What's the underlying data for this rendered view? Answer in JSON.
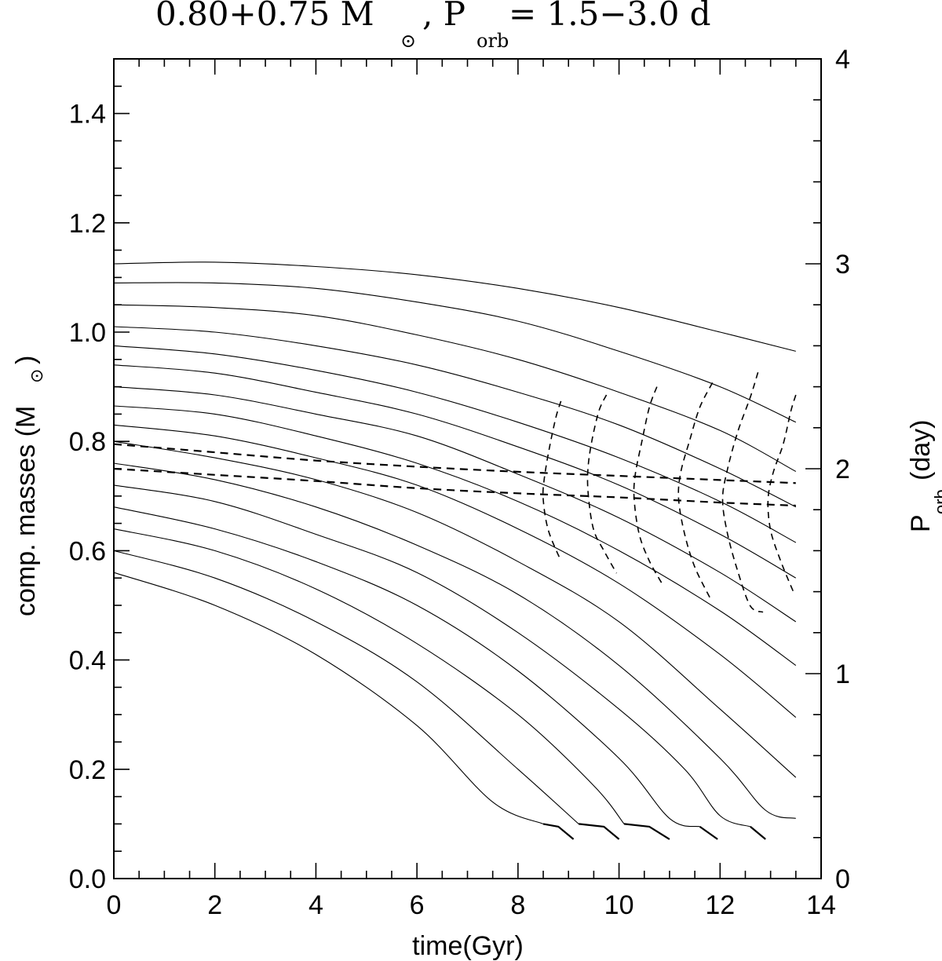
{
  "chart_data": {
    "type": "line",
    "title": "0.80+0.75 M",
    "title_sun_symbol": "⊙",
    "title_rest": ", P",
    "title_orb_sub": "orb",
    "title_period": " = 1.5−3.0 d",
    "xlabel": "time(Gyr)",
    "ylabel_left": "comp. masses (M",
    "ylabel_left_sun": "⊙",
    "ylabel_left_close": ")",
    "ylabel_right": "P",
    "ylabel_right_sub": "orb",
    "ylabel_right_unit": "(day)",
    "xlim": [
      0,
      14
    ],
    "ylim_left": [
      0,
      1.5
    ],
    "ylim_right": [
      0,
      4
    ],
    "x_ticks": [
      0,
      2,
      4,
      6,
      8,
      10,
      12,
      14
    ],
    "x_tick_labels": [
      "0",
      "2",
      "4",
      "6",
      "8",
      "10",
      "12",
      "14"
    ],
    "y_ticks_left": [
      0.0,
      0.2,
      0.4,
      0.6,
      0.8,
      1.0,
      1.2,
      1.4
    ],
    "y_tick_labels_left": [
      "0.0",
      "0.2",
      "0.4",
      "0.6",
      "0.8",
      "1.0",
      "1.2",
      "1.4"
    ],
    "y_ticks_right": [
      0,
      1,
      2,
      3,
      4
    ],
    "y_tick_labels_right": [
      "0",
      "1",
      "2",
      "3",
      "4"
    ],
    "donor_mass_tracks": [
      [
        [
          0,
          0.56
        ],
        [
          2,
          0.5
        ],
        [
          4,
          0.41
        ],
        [
          6,
          0.28
        ],
        [
          7.5,
          0.14
        ],
        [
          8.5,
          0.1
        ],
        [
          8.8,
          0.095
        ],
        [
          9.1,
          0.072
        ]
      ],
      [
        [
          0,
          0.6
        ],
        [
          2,
          0.55
        ],
        [
          4,
          0.47
        ],
        [
          6,
          0.36
        ],
        [
          8,
          0.2
        ],
        [
          9.2,
          0.1
        ],
        [
          9.7,
          0.095
        ],
        [
          10,
          0.072
        ]
      ],
      [
        [
          0,
          0.64
        ],
        [
          2,
          0.6
        ],
        [
          4,
          0.53
        ],
        [
          6,
          0.43
        ],
        [
          8,
          0.3
        ],
        [
          9.5,
          0.17
        ],
        [
          10.1,
          0.1
        ],
        [
          10.6,
          0.095
        ],
        [
          11,
          0.072
        ]
      ],
      [
        [
          0,
          0.68
        ],
        [
          2,
          0.64
        ],
        [
          4,
          0.58
        ],
        [
          6,
          0.5
        ],
        [
          8,
          0.38
        ],
        [
          10,
          0.22
        ],
        [
          11,
          0.11
        ],
        [
          11.6,
          0.095
        ],
        [
          11.95,
          0.072
        ]
      ],
      [
        [
          0,
          0.72
        ],
        [
          2,
          0.69
        ],
        [
          4,
          0.63
        ],
        [
          6,
          0.56
        ],
        [
          8,
          0.45
        ],
        [
          10,
          0.31
        ],
        [
          11.3,
          0.2
        ],
        [
          12,
          0.115
        ],
        [
          12.6,
          0.095
        ],
        [
          12.9,
          0.072
        ]
      ],
      [
        [
          0,
          0.76
        ],
        [
          2,
          0.73
        ],
        [
          4,
          0.68
        ],
        [
          6,
          0.61
        ],
        [
          8,
          0.52
        ],
        [
          10,
          0.39
        ],
        [
          12,
          0.22
        ],
        [
          12.9,
          0.125
        ],
        [
          13.5,
          0.11
        ]
      ],
      [
        [
          0,
          0.8
        ],
        [
          2,
          0.77
        ],
        [
          4,
          0.73
        ],
        [
          6,
          0.67
        ],
        [
          8,
          0.58
        ],
        [
          10,
          0.47
        ],
        [
          12,
          0.31
        ],
        [
          13.5,
          0.185
        ]
      ],
      [
        [
          0,
          0.83
        ],
        [
          2,
          0.81
        ],
        [
          4,
          0.77
        ],
        [
          6,
          0.72
        ],
        [
          8,
          0.64
        ],
        [
          10,
          0.54
        ],
        [
          12,
          0.41
        ],
        [
          13.5,
          0.295
        ]
      ],
      [
        [
          0,
          0.865
        ],
        [
          2,
          0.85
        ],
        [
          4,
          0.81
        ],
        [
          6,
          0.76
        ],
        [
          8,
          0.69
        ],
        [
          10,
          0.6
        ],
        [
          12,
          0.49
        ],
        [
          13.5,
          0.39
        ]
      ],
      [
        [
          0,
          0.9
        ],
        [
          2,
          0.885
        ],
        [
          4,
          0.85
        ],
        [
          6,
          0.81
        ],
        [
          8,
          0.74
        ],
        [
          10,
          0.66
        ],
        [
          12,
          0.56
        ],
        [
          13.5,
          0.47
        ]
      ],
      [
        [
          0,
          0.94
        ],
        [
          2,
          0.925
        ],
        [
          4,
          0.89
        ],
        [
          6,
          0.85
        ],
        [
          8,
          0.79
        ],
        [
          10,
          0.72
        ],
        [
          12,
          0.63
        ],
        [
          13.5,
          0.55
        ]
      ],
      [
        [
          0,
          0.975
        ],
        [
          2,
          0.96
        ],
        [
          4,
          0.93
        ],
        [
          6,
          0.89
        ],
        [
          8,
          0.835
        ],
        [
          10,
          0.77
        ],
        [
          12,
          0.69
        ],
        [
          13.5,
          0.615
        ]
      ],
      [
        [
          0,
          1.01
        ],
        [
          2,
          1.0
        ],
        [
          4,
          0.975
        ],
        [
          6,
          0.94
        ],
        [
          8,
          0.89
        ],
        [
          10,
          0.83
        ],
        [
          12,
          0.75
        ],
        [
          13.5,
          0.68
        ]
      ],
      [
        [
          0,
          1.05
        ],
        [
          2,
          1.045
        ],
        [
          4,
          1.03
        ],
        [
          6,
          0.995
        ],
        [
          8,
          0.95
        ],
        [
          10,
          0.89
        ],
        [
          12,
          0.82
        ],
        [
          13.5,
          0.745
        ]
      ],
      [
        [
          0,
          1.09
        ],
        [
          2,
          1.09
        ],
        [
          4,
          1.08
        ],
        [
          6,
          1.055
        ],
        [
          8,
          1.02
        ],
        [
          10,
          0.965
        ],
        [
          12,
          0.9
        ],
        [
          13.5,
          0.835
        ]
      ],
      [
        [
          0,
          1.125
        ],
        [
          2,
          1.128
        ],
        [
          4,
          1.12
        ],
        [
          6,
          1.105
        ],
        [
          8,
          1.08
        ],
        [
          10,
          1.045
        ],
        [
          12,
          1.0
        ],
        [
          13.5,
          0.965
        ]
      ]
    ],
    "orbital_period_tracks_pday": [
      [
        [
          0,
          2.12
        ],
        [
          2,
          2.08
        ],
        [
          4,
          2.04
        ],
        [
          6,
          2.01
        ],
        [
          8,
          1.985
        ],
        [
          10,
          1.965
        ],
        [
          12,
          1.945
        ],
        [
          13.5,
          1.93
        ]
      ],
      [
        [
          0,
          2.0
        ],
        [
          2,
          1.97
        ],
        [
          4,
          1.94
        ],
        [
          6,
          1.905
        ],
        [
          8,
          1.88
        ],
        [
          10,
          1.86
        ],
        [
          12,
          1.835
        ],
        [
          13.5,
          1.82
        ]
      ]
    ],
    "dashed_isochrones_pday": [
      [
        [
          8.85,
          2.33
        ],
        [
          8.75,
          2.25
        ],
        [
          8.62,
          2.1
        ],
        [
          8.52,
          1.95
        ],
        [
          8.5,
          1.85
        ],
        [
          8.6,
          1.7
        ],
        [
          8.85,
          1.55
        ]
      ],
      [
        [
          9.75,
          2.36
        ],
        [
          9.6,
          2.28
        ],
        [
          9.45,
          2.12
        ],
        [
          9.38,
          1.98
        ],
        [
          9.4,
          1.85
        ],
        [
          9.5,
          1.7
        ],
        [
          9.7,
          1.6
        ],
        [
          9.95,
          1.49
        ]
      ],
      [
        [
          10.75,
          2.4
        ],
        [
          10.6,
          2.3
        ],
        [
          10.45,
          2.13
        ],
        [
          10.32,
          1.97
        ],
        [
          10.3,
          1.85
        ],
        [
          10.4,
          1.68
        ],
        [
          10.6,
          1.55
        ],
        [
          10.85,
          1.44
        ]
      ],
      [
        [
          11.85,
          2.42
        ],
        [
          11.6,
          2.3
        ],
        [
          11.4,
          2.14
        ],
        [
          11.22,
          1.98
        ],
        [
          11.18,
          1.85
        ],
        [
          11.3,
          1.68
        ],
        [
          11.5,
          1.52
        ],
        [
          11.8,
          1.37
        ]
      ],
      [
        [
          12.75,
          2.47
        ],
        [
          12.6,
          2.35
        ],
        [
          12.35,
          2.18
        ],
        [
          12.15,
          2.0
        ],
        [
          12.05,
          1.85
        ],
        [
          12.15,
          1.68
        ],
        [
          12.35,
          1.5
        ],
        [
          12.6,
          1.33
        ],
        [
          12.85,
          1.3
        ]
      ],
      [
        [
          13.5,
          2.36
        ],
        [
          13.4,
          2.28
        ],
        [
          13.25,
          2.12
        ],
        [
          13.05,
          1.98
        ],
        [
          12.95,
          1.85
        ],
        [
          13.0,
          1.7
        ],
        [
          13.2,
          1.55
        ],
        [
          13.45,
          1.4
        ]
      ]
    ]
  }
}
